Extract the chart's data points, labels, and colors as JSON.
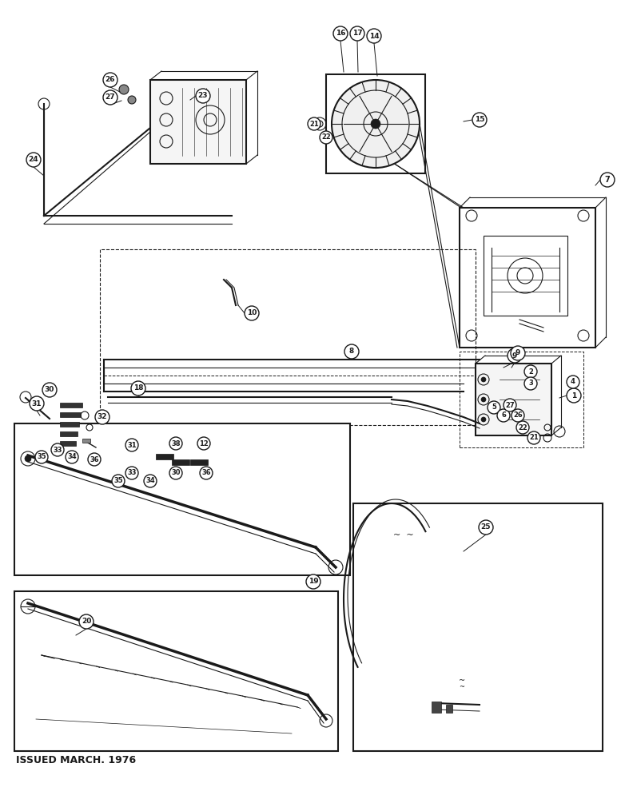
{
  "bg_color": "#ffffff",
  "ink_color": "#1a1a1a",
  "footer_text": "ISSUED MARCH. 1976"
}
